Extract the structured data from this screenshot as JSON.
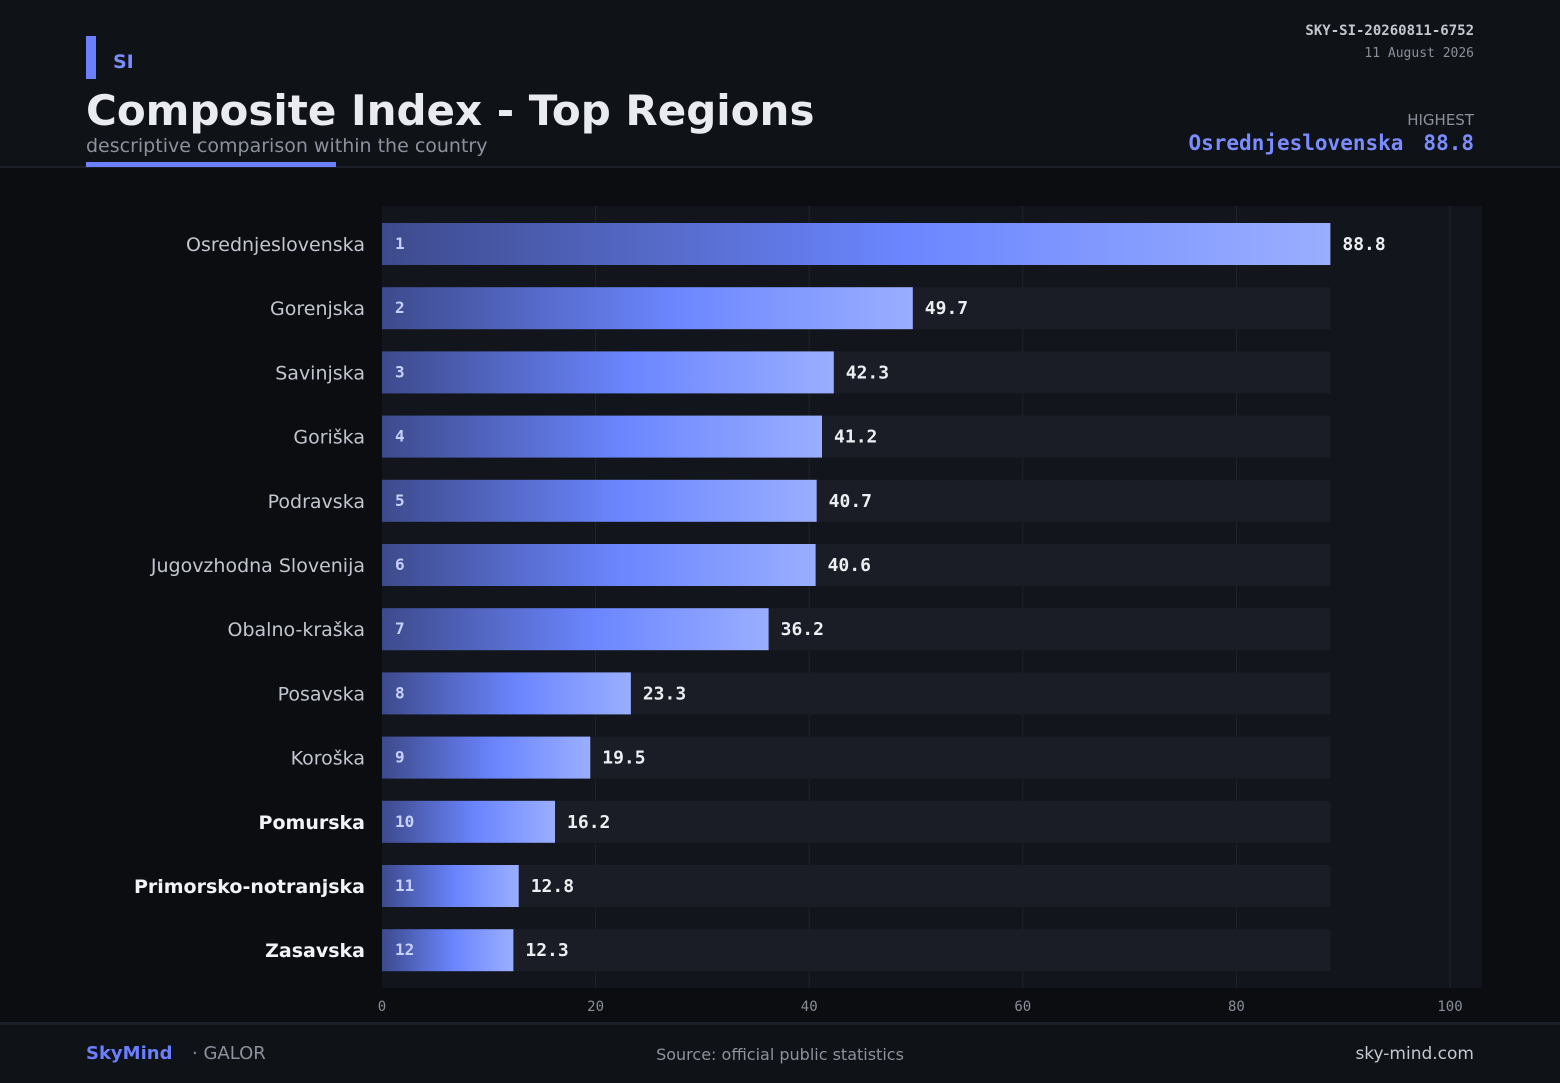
{
  "header": {
    "country": "SI",
    "title": "Composite Index - Top Regions",
    "subtitle": "descriptive comparison within the country",
    "doc_id": "SKY-SI-20260811-6752",
    "date": "11 August 2026",
    "highest_label": "HIGHEST",
    "highest_region": "Osrednjeslovenska",
    "highest_value": "88.8"
  },
  "chart_data": {
    "type": "bar",
    "orientation": "horizontal",
    "categories": [
      "Osrednjeslovenska",
      "Gorenjska",
      "Savinjska",
      "Goriška",
      "Podravska",
      "Jugovzhodna Slovenija",
      "Obalno-kraška",
      "Posavska",
      "Koroška",
      "Pomurska",
      "Primorsko-notranjska",
      "Zasavska"
    ],
    "ranks": [
      "1",
      "2",
      "3",
      "4",
      "5",
      "6",
      "7",
      "8",
      "9",
      "10",
      "11",
      "12"
    ],
    "values": [
      88.8,
      49.7,
      42.3,
      41.2,
      40.7,
      40.6,
      36.2,
      23.3,
      19.5,
      16.2,
      12.8,
      12.3
    ],
    "value_labels": [
      "88.8",
      "49.7",
      "42.3",
      "41.2",
      "40.7",
      "40.6",
      "36.2",
      "23.3",
      "19.5",
      "16.2",
      "12.8",
      "12.3"
    ],
    "highlighted": [
      "Pomurska",
      "Primorsko-notranjska",
      "Zasavska"
    ],
    "xlim": [
      0,
      100
    ],
    "xticks": [
      0,
      20,
      40,
      60,
      80,
      100
    ],
    "xtick_labels": [
      "0",
      "20",
      "40",
      "60",
      "80",
      "100"
    ],
    "grid": true,
    "colors": {
      "bar_start": "#3d4a8c",
      "bar_mid": "#6b86ff",
      "bar_end": "#9aaeff",
      "track": "#1a1d25",
      "plot_bg": "#12151c"
    }
  },
  "footer": {
    "brand": "SkyMind",
    "brand_sub": "· GALOR",
    "source": "Source: official public statistics",
    "site": "sky-mind.com"
  }
}
